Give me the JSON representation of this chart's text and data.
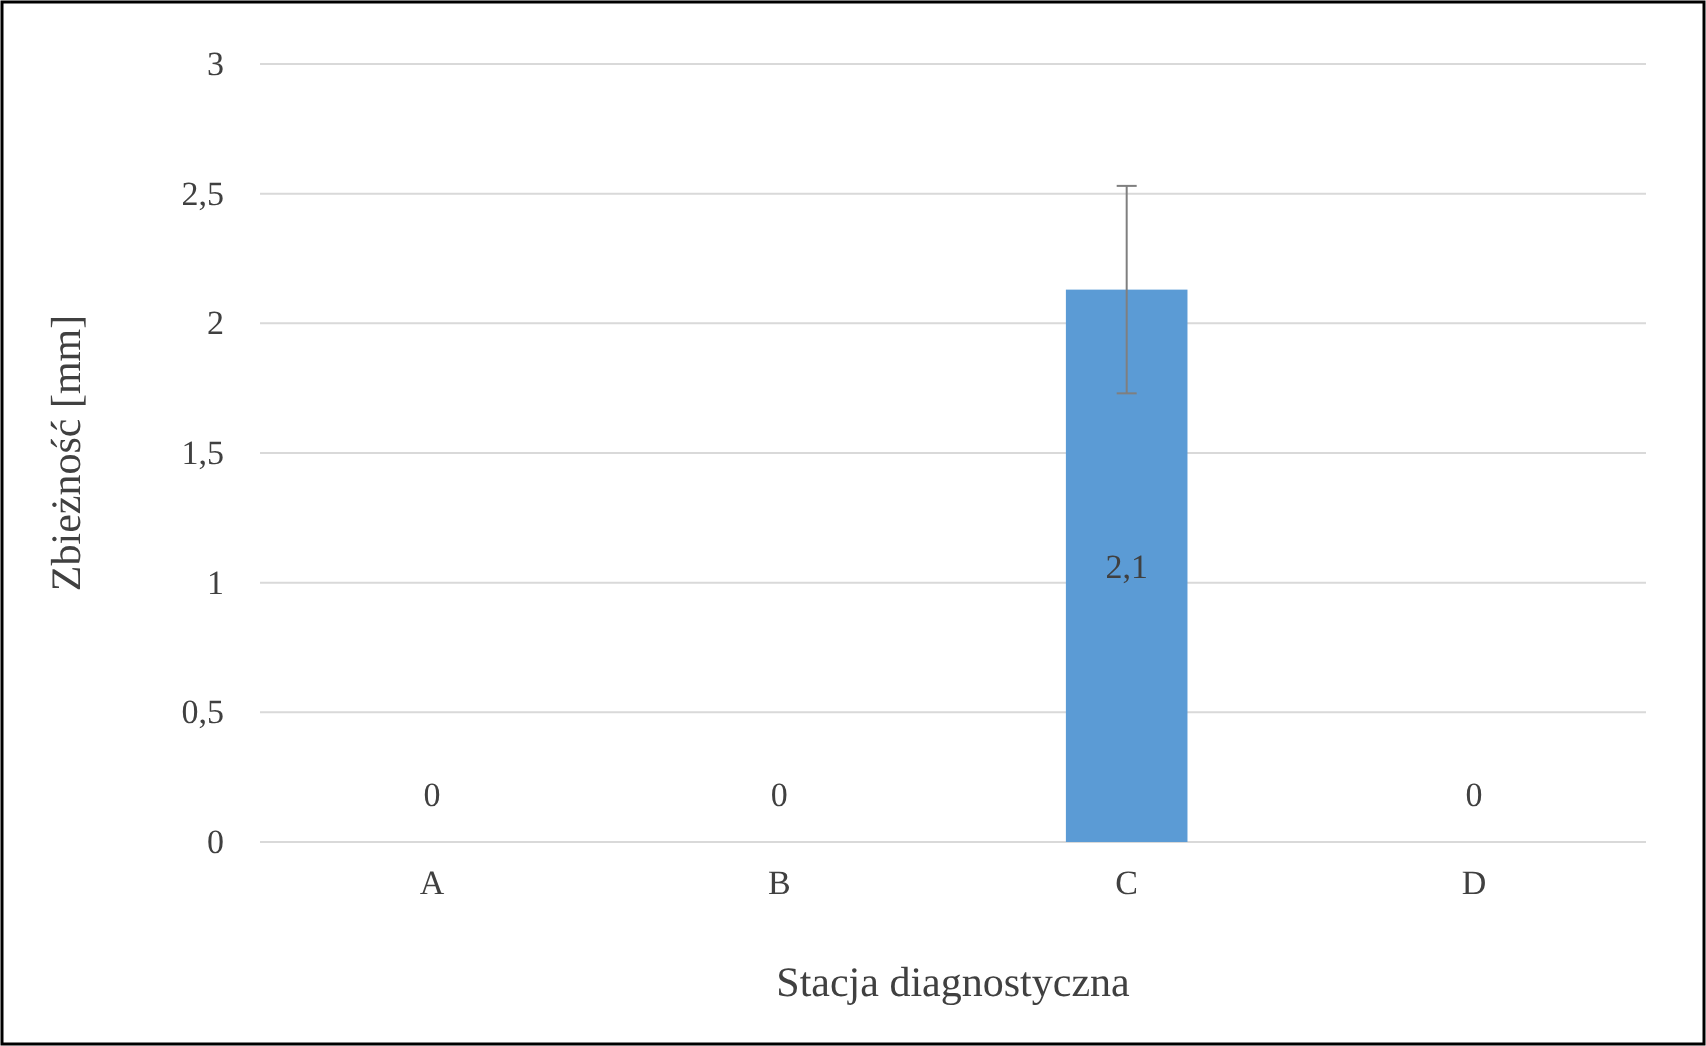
{
  "chart_data": {
    "type": "bar",
    "xlabel": "Stacja diagnostyczna",
    "ylabel": "Zbieżność [mm]",
    "categories": [
      "A",
      "B",
      "C",
      "D"
    ],
    "values": [
      0,
      0,
      2.13,
      0
    ],
    "errors": [
      null,
      null,
      0.4,
      null
    ],
    "value_labels": [
      "0",
      "0",
      "2,1",
      "0"
    ],
    "color": "#5b9bd5",
    "ylim": [
      0,
      3
    ],
    "yticks": [
      0,
      {
        "value": 0.5,
        "label": "0,5"
      },
      1,
      {
        "value": 1.5,
        "label": "1,5"
      },
      2,
      {
        "value": 2.5,
        "label": "2,5"
      },
      3
    ],
    "grid": "y"
  }
}
